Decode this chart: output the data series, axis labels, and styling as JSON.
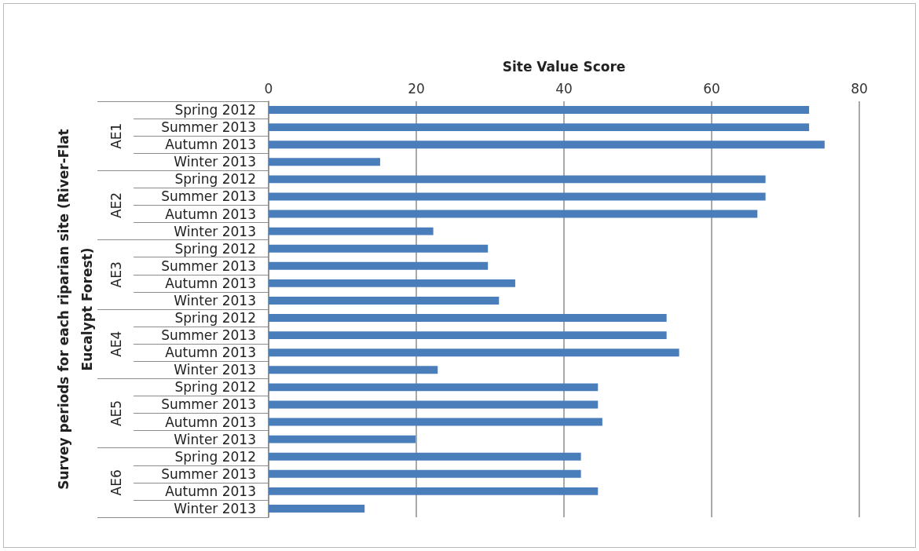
{
  "chart_data": {
    "type": "bar",
    "orientation": "horizontal",
    "xlabel": "Site Value Score",
    "ylabel": "Survey periods for each riparian site (River-Flat Eucalypt Forest)",
    "categories": [
      "Spring 2012",
      "Summer 2013",
      "Autumn 2013",
      "Winter 2013",
      "Spring 2012",
      "Summer 2013",
      "Autumn 2013",
      "Winter 2013",
      "Spring 2012",
      "Summer 2013",
      "Autumn 2013",
      "Winter 2013",
      "Spring 2012",
      "Summer 2013",
      "Autumn 2013",
      "Winter 2013",
      "Spring 2012",
      "Summer 2013",
      "Autumn 2013",
      "Winter 2013",
      "Spring 2012",
      "Summer 2013",
      "Autumn 2013",
      "Winter 2013"
    ],
    "annotations": [
      "AE1",
      "AE2",
      "AE3",
      "AE4",
      "AE5",
      "AE6"
    ],
    "values": [
      73.2,
      73.2,
      75.3,
      15.1,
      67.3,
      67.3,
      66.2,
      22.3,
      29.7,
      29.7,
      33.4,
      31.2,
      53.9,
      53.9,
      55.6,
      22.9,
      44.6,
      44.6,
      45.2,
      19.9,
      42.3,
      42.3,
      44.6,
      13.0
    ],
    "color": "#4a7ebb",
    "xlim": [
      0,
      80
    ],
    "xticks": [
      0,
      20,
      40,
      60,
      80
    ],
    "grid": "x"
  }
}
